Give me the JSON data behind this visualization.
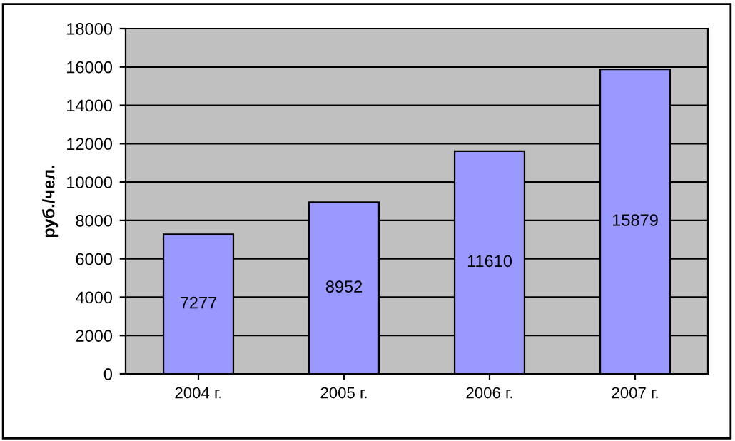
{
  "chart_data": {
    "type": "bar",
    "ylabel": "руб./чел.",
    "categories": [
      "2004 г.",
      "2005 г.",
      "2006 г.",
      "2007 г."
    ],
    "values": [
      7277,
      8952,
      11610,
      15879
    ],
    "color": "#9999ff",
    "data_labels": true,
    "ylim": [
      0,
      18000
    ],
    "yticks": [
      0,
      2000,
      4000,
      6000,
      8000,
      10000,
      12000,
      14000,
      16000,
      18000
    ],
    "grid": "y",
    "legend": false
  }
}
